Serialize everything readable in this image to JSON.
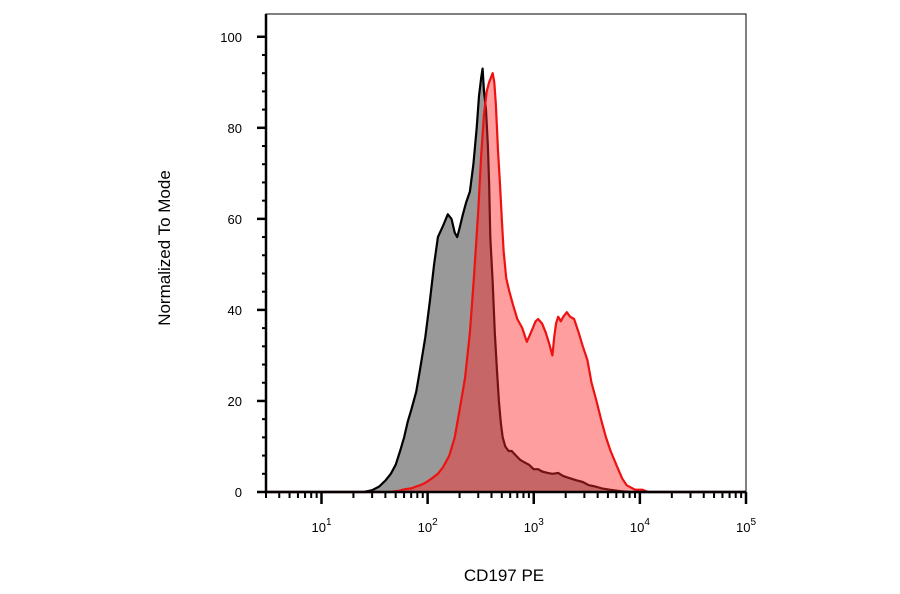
{
  "chart_data": {
    "type": "area",
    "title": "",
    "xlabel": "CD197 PE",
    "ylabel": "Normalized To Mode",
    "xscale": "log",
    "xlim": [
      3,
      100000
    ],
    "ylim": [
      0,
      105
    ],
    "grid": false,
    "y_ticks": [
      0,
      20,
      40,
      60,
      80,
      100
    ],
    "x_ticks": [
      {
        "value": 10,
        "base": "10",
        "exp": "1"
      },
      {
        "value": 100,
        "base": "10",
        "exp": "2"
      },
      {
        "value": 1000,
        "base": "10",
        "exp": "3"
      },
      {
        "value": 10000,
        "base": "10",
        "exp": "4"
      },
      {
        "value": 100000,
        "base": "10",
        "exp": "5"
      }
    ],
    "series": [
      {
        "fill": "#999999",
        "stroke": "#000000",
        "points": [
          [
            3,
            0
          ],
          [
            10,
            0
          ],
          [
            25,
            0
          ],
          [
            30,
            0.4
          ],
          [
            35,
            1.2
          ],
          [
            40,
            2.5
          ],
          [
            45,
            4
          ],
          [
            50,
            6
          ],
          [
            55,
            9
          ],
          [
            60,
            12
          ],
          [
            65,
            15.5
          ],
          [
            70,
            18
          ],
          [
            78,
            22
          ],
          [
            85,
            27
          ],
          [
            95,
            34
          ],
          [
            105,
            42
          ],
          [
            115,
            50
          ],
          [
            125,
            56
          ],
          [
            140,
            58.5
          ],
          [
            155,
            61
          ],
          [
            168,
            60
          ],
          [
            180,
            57
          ],
          [
            190,
            56
          ],
          [
            200,
            58
          ],
          [
            215,
            61
          ],
          [
            230,
            63.5
          ],
          [
            250,
            66
          ],
          [
            270,
            72
          ],
          [
            290,
            80
          ],
          [
            305,
            87
          ],
          [
            320,
            91
          ],
          [
            330,
            93
          ],
          [
            340,
            88
          ],
          [
            355,
            84
          ],
          [
            370,
            76
          ],
          [
            380,
            68
          ],
          [
            390,
            56
          ],
          [
            410,
            46
          ],
          [
            430,
            35
          ],
          [
            450,
            27
          ],
          [
            470,
            20
          ],
          [
            490,
            15
          ],
          [
            510,
            12
          ],
          [
            540,
            10
          ],
          [
            580,
            9
          ],
          [
            620,
            9
          ],
          [
            680,
            8
          ],
          [
            750,
            7
          ],
          [
            820,
            6.5
          ],
          [
            900,
            6
          ],
          [
            1000,
            5
          ],
          [
            1100,
            5
          ],
          [
            1200,
            4.5
          ],
          [
            1350,
            4.2
          ],
          [
            1500,
            4
          ],
          [
            1700,
            4.2
          ],
          [
            1900,
            3.5
          ],
          [
            2200,
            3
          ],
          [
            2500,
            2.6
          ],
          [
            2900,
            2.2
          ],
          [
            3300,
            1.5
          ],
          [
            3800,
            1.2
          ],
          [
            4400,
            0.8
          ],
          [
            5200,
            0.5
          ],
          [
            6500,
            0.2
          ],
          [
            8000,
            0
          ],
          [
            100000,
            0
          ]
        ]
      },
      {
        "fill": "rgba(255,40,40,0.45)",
        "stroke": "#ee1111",
        "points": [
          [
            3,
            0
          ],
          [
            10,
            0
          ],
          [
            30,
            0
          ],
          [
            45,
            0
          ],
          [
            55,
            0.3
          ],
          [
            60,
            0.6
          ],
          [
            70,
            0.8
          ],
          [
            78,
            1.2
          ],
          [
            85,
            1.5
          ],
          [
            95,
            2
          ],
          [
            110,
            3
          ],
          [
            125,
            4
          ],
          [
            140,
            5.5
          ],
          [
            160,
            8
          ],
          [
            180,
            12
          ],
          [
            200,
            18
          ],
          [
            225,
            25
          ],
          [
            250,
            35
          ],
          [
            275,
            48
          ],
          [
            300,
            62
          ],
          [
            320,
            74
          ],
          [
            340,
            83
          ],
          [
            360,
            88
          ],
          [
            380,
            90
          ],
          [
            395,
            91
          ],
          [
            410,
            92
          ],
          [
            425,
            90
          ],
          [
            440,
            85
          ],
          [
            460,
            75
          ],
          [
            480,
            68
          ],
          [
            500,
            60
          ],
          [
            520,
            53
          ],
          [
            550,
            47
          ],
          [
            590,
            44
          ],
          [
            640,
            41
          ],
          [
            700,
            38
          ],
          [
            780,
            36
          ],
          [
            860,
            33
          ],
          [
            920,
            34.5
          ],
          [
            980,
            36
          ],
          [
            1040,
            37.5
          ],
          [
            1100,
            38
          ],
          [
            1200,
            37
          ],
          [
            1300,
            35
          ],
          [
            1400,
            32.5
          ],
          [
            1500,
            30
          ],
          [
            1560,
            34
          ],
          [
            1620,
            37
          ],
          [
            1700,
            38.5
          ],
          [
            1800,
            37.5
          ],
          [
            1900,
            38.5
          ],
          [
            2050,
            39.5
          ],
          [
            2200,
            38.5
          ],
          [
            2400,
            38
          ],
          [
            2650,
            35
          ],
          [
            2900,
            32
          ],
          [
            3200,
            29
          ],
          [
            3500,
            24
          ],
          [
            3900,
            20
          ],
          [
            4300,
            16
          ],
          [
            4800,
            12
          ],
          [
            5300,
            9
          ],
          [
            6000,
            6
          ],
          [
            6800,
            3
          ],
          [
            7500,
            1.5
          ],
          [
            9000,
            0.5
          ],
          [
            10500,
            0.5
          ],
          [
            12000,
            0
          ],
          [
            100000,
            0
          ]
        ]
      }
    ]
  }
}
